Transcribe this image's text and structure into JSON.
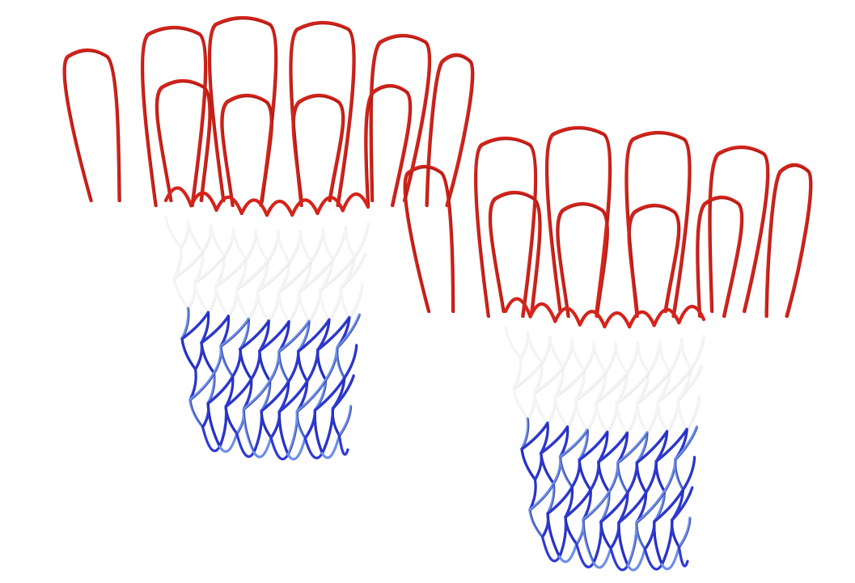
{
  "image": {
    "subject": "basketball-nets",
    "count": 2,
    "background_color": "#ffffff"
  },
  "colors": {
    "red": "#d4241b",
    "red_dark": "#8e1410",
    "white": "#f4f4f4",
    "white_shadow": "#b9bcc4",
    "blue": "#2e3ad6",
    "blue_light": "#6d8fe6",
    "blue_dark": "#1b1f8c"
  },
  "nets": [
    {
      "name": "basketball-net-left",
      "bands": [
        "red",
        "white",
        "blue"
      ]
    },
    {
      "name": "basketball-net-right",
      "bands": [
        "red",
        "white",
        "blue"
      ]
    }
  ]
}
